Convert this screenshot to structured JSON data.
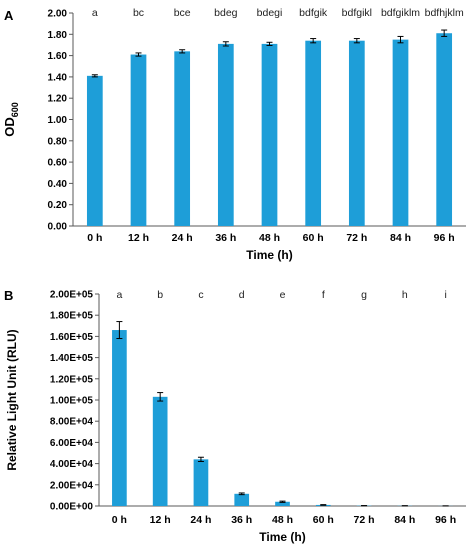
{
  "chart_data": [
    {
      "panel_label": "A",
      "type": "bar",
      "categories": [
        "0 h",
        "12 h",
        "24 h",
        "36 h",
        "48 h",
        "60 h",
        "72 h",
        "84 h",
        "96 h"
      ],
      "values": [
        1.41,
        1.61,
        1.64,
        1.71,
        1.71,
        1.74,
        1.74,
        1.75,
        1.81
      ],
      "errors": [
        0.01,
        0.015,
        0.015,
        0.02,
        0.015,
        0.02,
        0.02,
        0.03,
        0.03
      ],
      "letters": [
        "a",
        "bc",
        "bce",
        "bdeg",
        "bdegi",
        "bdfgik",
        "bdfgikl",
        "bdfgiklm",
        "bdfhjklm"
      ],
      "xlabel": "Time (h)",
      "ylabel_main": "OD",
      "ylabel_sub": "600",
      "ylim": [
        0,
        2.0
      ],
      "yticks": [
        "0.00",
        "0.20",
        "0.40",
        "0.60",
        "0.80",
        "1.00",
        "1.20",
        "1.40",
        "1.60",
        "1.80",
        "2.00"
      ],
      "grid": false,
      "bar_color": "#1e9ed8"
    },
    {
      "panel_label": "B",
      "type": "bar",
      "categories": [
        "0 h",
        "12 h",
        "24 h",
        "36 h",
        "48 h",
        "60 h",
        "72 h",
        "84 h",
        "96 h"
      ],
      "values": [
        166000,
        103000,
        44000,
        11500,
        4000,
        1000,
        300,
        200,
        100
      ],
      "errors": [
        8000,
        4000,
        2000,
        800,
        600,
        300,
        100,
        100,
        50
      ],
      "letters": [
        "a",
        "b",
        "c",
        "d",
        "e",
        "f",
        "g",
        "h",
        "i"
      ],
      "xlabel": "Time (h)",
      "ylabel": "Relative Light Unit (RLU)",
      "ylim": [
        0,
        200000
      ],
      "yticks": [
        "0.00E+00",
        "2.00E+04",
        "4.00E+04",
        "6.00E+04",
        "8.00E+04",
        "1.00E+05",
        "1.20E+05",
        "1.40E+05",
        "1.60E+05",
        "1.80E+05",
        "2.00E+05"
      ],
      "grid": false,
      "bar_color": "#1e9ed8"
    }
  ]
}
